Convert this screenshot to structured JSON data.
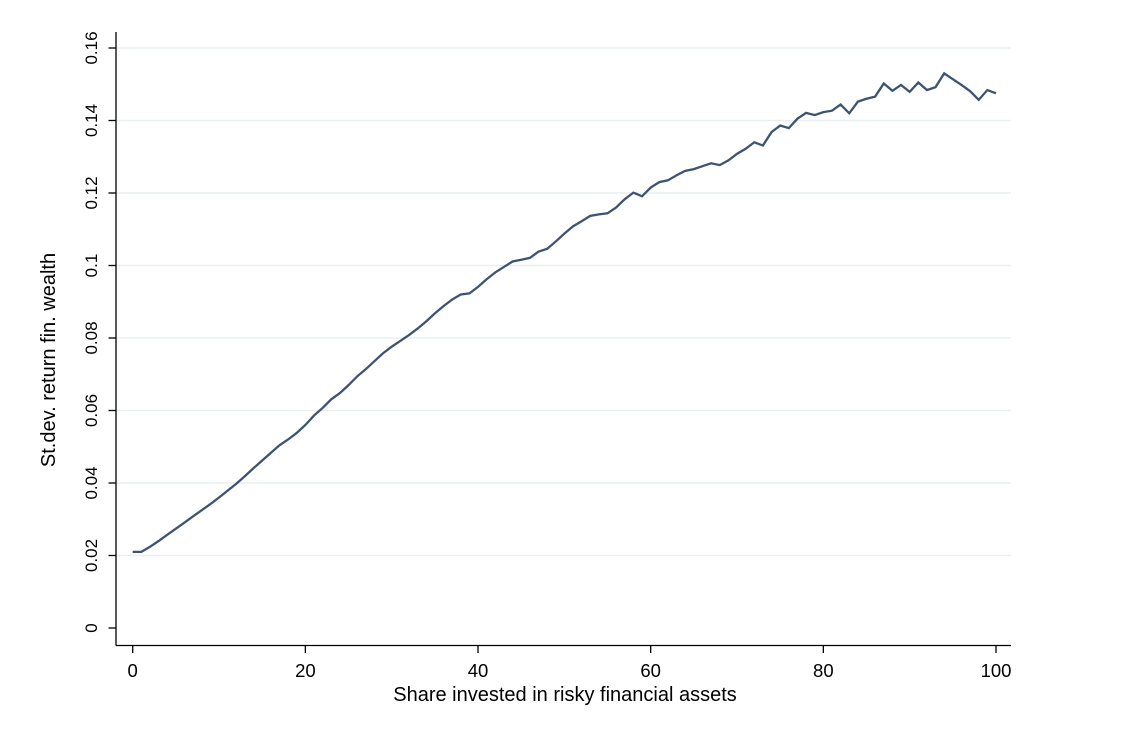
{
  "chart_data": {
    "type": "line",
    "title": "",
    "xlabel": "Share invested in risky financial assets",
    "ylabel": "St.dev. return fin. wealth",
    "x_range": [
      0,
      100
    ],
    "y_range": [
      0,
      0.16
    ],
    "x_ticks": [
      0,
      20,
      40,
      60,
      80,
      100
    ],
    "x_tick_labels": [
      "0",
      "20",
      "40",
      "60",
      "80",
      "100"
    ],
    "y_ticks": [
      0,
      0.02,
      0.04,
      0.06,
      0.08,
      0.1,
      0.12,
      0.14,
      0.16
    ],
    "y_tick_labels": [
      "0",
      "0.02",
      "0.04",
      "0.06",
      "0.08",
      "0.1",
      "0.12",
      "0.14",
      "0.16"
    ],
    "grid": "horizontal-only",
    "legend": "none",
    "series": [
      {
        "name": "St.dev. return fin. wealth",
        "x": [
          0,
          1,
          2,
          3,
          4,
          5,
          6,
          7,
          8,
          9,
          10,
          11,
          12,
          13,
          14,
          15,
          16,
          17,
          18,
          19,
          20,
          21,
          22,
          23,
          24,
          25,
          26,
          27,
          28,
          29,
          30,
          31,
          32,
          33,
          34,
          35,
          36,
          37,
          38,
          39,
          40,
          41,
          42,
          43,
          44,
          45,
          46,
          47,
          48,
          49,
          50,
          51,
          52,
          53,
          54,
          55,
          56,
          57,
          58,
          59,
          60,
          61,
          62,
          63,
          64,
          65,
          66,
          67,
          68,
          69,
          70,
          71,
          72,
          73,
          74,
          75,
          76,
          77,
          78,
          79,
          80,
          81,
          82,
          83,
          84,
          85,
          86,
          87,
          88,
          89,
          90,
          91,
          92,
          93,
          94,
          95,
          96,
          97,
          98,
          99,
          100
        ],
        "values": [
          0.021,
          0.021,
          0.0224,
          0.024,
          0.0257,
          0.0274,
          0.0291,
          0.0308,
          0.0325,
          0.0342,
          0.036,
          0.0379,
          0.0398,
          0.0419,
          0.0441,
          0.0462,
          0.0483,
          0.0504,
          0.052,
          0.0538,
          0.056,
          0.0586,
          0.0607,
          0.0631,
          0.0648,
          0.067,
          0.0694,
          0.0714,
          0.0736,
          0.0758,
          0.0776,
          0.0792,
          0.0808,
          0.0826,
          0.0846,
          0.0868,
          0.0888,
          0.0906,
          0.092,
          0.0923,
          0.0941,
          0.0962,
          0.0981,
          0.0996,
          0.1011,
          0.1016,
          0.1021,
          0.1038,
          0.1046,
          0.1066,
          0.1088,
          0.1108,
          0.1122,
          0.1137,
          0.1141,
          0.1144,
          0.116,
          0.1183,
          0.1201,
          0.1191,
          0.1215,
          0.123,
          0.1235,
          0.1249,
          0.1261,
          0.1266,
          0.1274,
          0.1282,
          0.1277,
          0.129,
          0.1308,
          0.1322,
          0.134,
          0.1331,
          0.1368,
          0.1386,
          0.1379,
          0.1405,
          0.1421,
          0.1415,
          0.1423,
          0.1427,
          0.1444,
          0.142,
          0.1452,
          0.146,
          0.1466,
          0.1502,
          0.1482,
          0.1498,
          0.1479,
          0.1505,
          0.1484,
          0.1492,
          0.153,
          0.1514,
          0.1498,
          0.1481,
          0.1457,
          0.1484,
          0.1475
        ]
      }
    ],
    "colors": {
      "line": "#3c5472",
      "grid": "#e8eff1",
      "axis": "#000000",
      "background": "#ffffff"
    }
  }
}
